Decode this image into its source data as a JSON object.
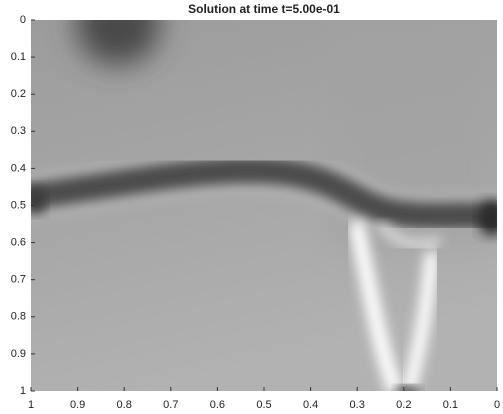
{
  "chart_data": {
    "type": "image",
    "title": "Solution at time t=5.00e-01",
    "xlim": [
      1,
      0
    ],
    "xticks": [
      1,
      0.9,
      0.8,
      0.7,
      0.6,
      0.5,
      0.4,
      0.3,
      0.2,
      0.1,
      0
    ],
    "ylim": [
      0,
      1
    ],
    "yticks": [
      0,
      0.1,
      0.2,
      0.3,
      0.4,
      0.5,
      0.6,
      0.7,
      0.8,
      0.9,
      1
    ],
    "colormap": "gray"
  }
}
